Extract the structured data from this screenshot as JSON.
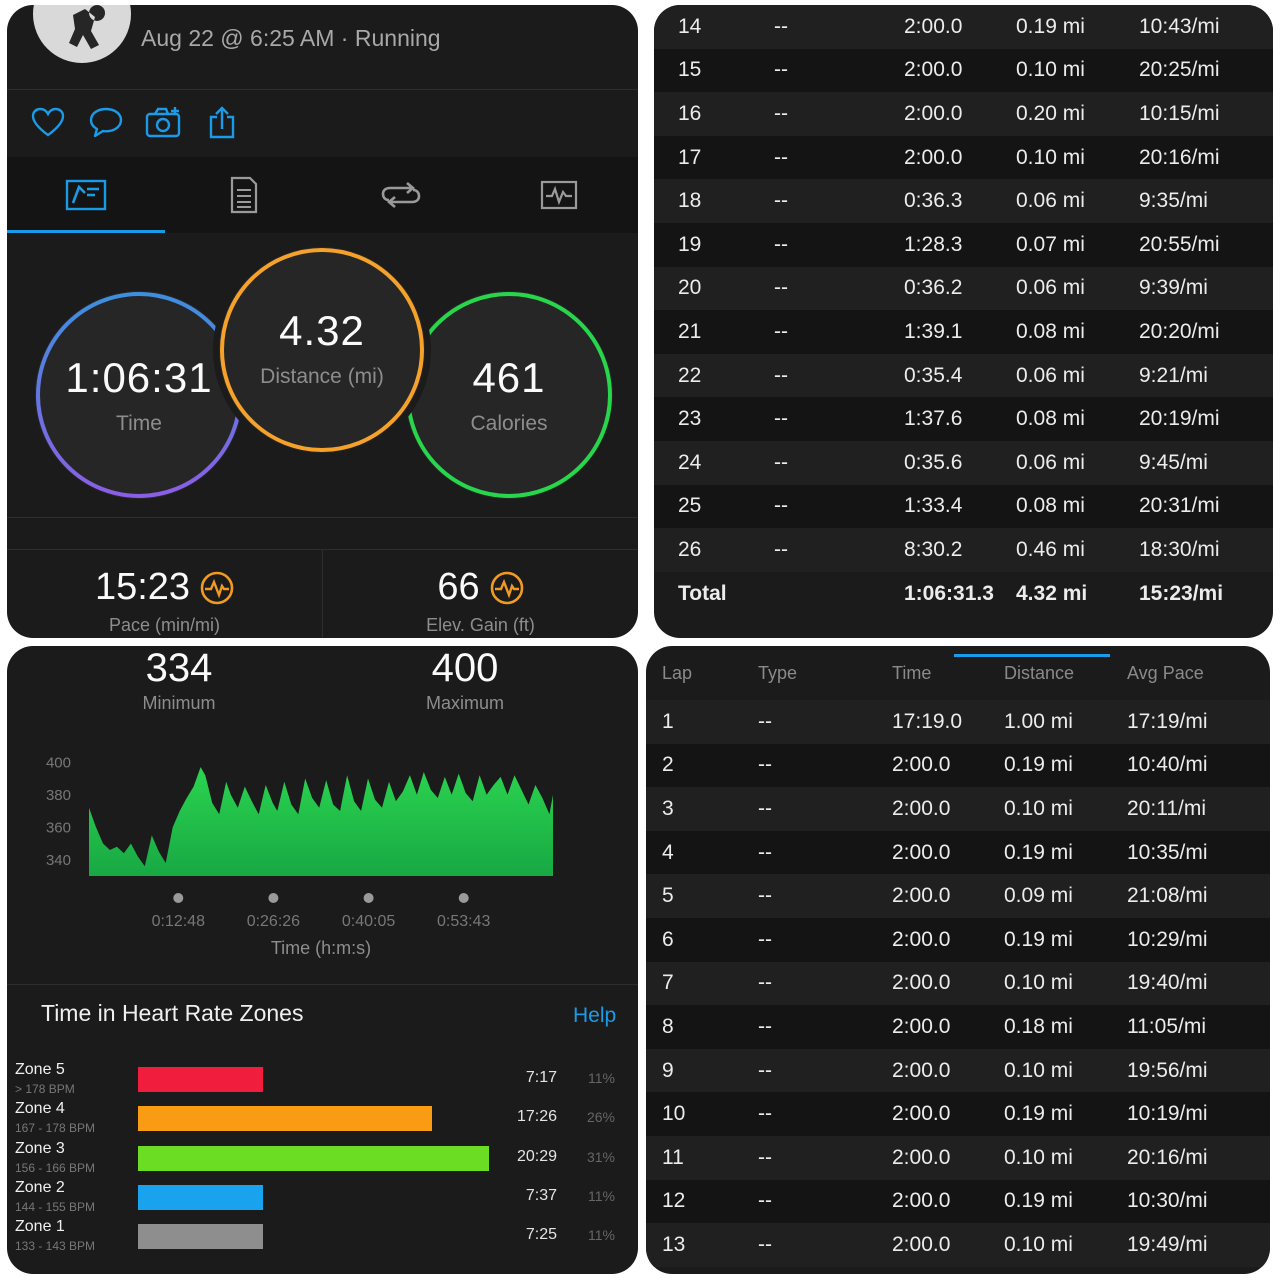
{
  "activity": {
    "date_time": "Aug 22 @ 6:25 AM",
    "separator": " · ",
    "type": "Running"
  },
  "summary": {
    "time": {
      "value": "1:06:31",
      "label": "Time"
    },
    "distance": {
      "value": "4.32",
      "label": "Distance (mi)"
    },
    "calories": {
      "value": "461",
      "label": "Calories"
    },
    "pace": {
      "value": "15:23",
      "label": "Pace (min/mi)"
    },
    "elevation": {
      "value": "66",
      "label": "Elev. Gain (ft)"
    }
  },
  "colors": {
    "accent": "#1a9be8",
    "time_ring": "#3d8fe0",
    "time_ring_end": "#8b5ee6",
    "distance_ring": "#f5a12a",
    "calories_ring": "#27d64b",
    "chart_fill": "#22c94f",
    "badge": "#f09a22"
  },
  "icons": {
    "social": [
      "heart-icon",
      "comment-icon",
      "camera-icon",
      "share-icon"
    ],
    "tabs": [
      "overview-icon",
      "stats-icon",
      "laps-icon",
      "charts-icon"
    ],
    "badge": "performance-badge-icon"
  },
  "cadence": {
    "minimum": {
      "value": "334",
      "label": "Minimum"
    },
    "maximum": {
      "value": "400",
      "label": "Maximum"
    },
    "xlabel": "Time (h:m:s)"
  },
  "chart_data": {
    "type": "area",
    "xlabel": "Time (h:m:s)",
    "ylabel": "",
    "ylim": [
      330,
      410
    ],
    "y_ticks": [
      400,
      380,
      360,
      340
    ],
    "x_ticks": [
      "0:12:48",
      "0:26:26",
      "0:40:05",
      "0:53:43"
    ],
    "x_tick_seconds": [
      768,
      1586,
      2405,
      3223
    ],
    "x_range_seconds": [
      0,
      3991
    ],
    "grid": false,
    "series": [
      {
        "x": [
          0,
          60,
          120,
          180,
          240,
          300,
          360,
          420,
          480,
          540,
          600,
          660,
          720,
          780,
          840,
          900,
          960,
          1000,
          1060,
          1120,
          1180,
          1220,
          1280,
          1340,
          1400,
          1460,
          1520,
          1580,
          1620,
          1680,
          1740,
          1800,
          1860,
          1920,
          1980,
          2040,
          2100,
          2160,
          2220,
          2280,
          2340,
          2400,
          2460,
          2520,
          2580,
          2640,
          2700,
          2760,
          2820,
          2880,
          2940,
          3000,
          3060,
          3120,
          3180,
          3240,
          3300,
          3360,
          3420,
          3480,
          3540,
          3600,
          3660,
          3720,
          3780,
          3840,
          3900,
          3960,
          3991
        ],
        "values": [
          372,
          360,
          350,
          346,
          348,
          344,
          350,
          342,
          336,
          355,
          345,
          338,
          360,
          370,
          378,
          385,
          397,
          392,
          375,
          368,
          388,
          380,
          372,
          385,
          376,
          368,
          386,
          375,
          370,
          388,
          374,
          368,
          390,
          378,
          372,
          389,
          374,
          370,
          392,
          376,
          370,
          390,
          377,
          372,
          388,
          376,
          382,
          392,
          380,
          394,
          383,
          378,
          391,
          380,
          393,
          381,
          376,
          392,
          380,
          386,
          391,
          380,
          392,
          383,
          374,
          386,
          378,
          368,
          380
        ]
      }
    ]
  },
  "hr_zones": {
    "title": "Time in Heart Rate Zones",
    "help": "Help",
    "zones": [
      {
        "name": "Zone 5",
        "range": "> 178 BPM",
        "time": "7:17",
        "percent": "11%",
        "share": 0.11,
        "color": "#f01e3c"
      },
      {
        "name": "Zone 4",
        "range": "167 - 178 BPM",
        "time": "17:26",
        "percent": "26%",
        "share": 0.26,
        "color": "#fa9b14"
      },
      {
        "name": "Zone 3",
        "range": "156 - 166 BPM",
        "time": "20:29",
        "percent": "31%",
        "share": 0.31,
        "color": "#6bdd23"
      },
      {
        "name": "Zone 2",
        "range": "144 - 155 BPM",
        "time": "7:37",
        "percent": "11%",
        "share": 0.11,
        "color": "#19a2ee"
      },
      {
        "name": "Zone 1",
        "range": "133 - 143 BPM",
        "time": "7:25",
        "percent": "11%",
        "share": 0.11,
        "color": "#8e8e8e"
      }
    ]
  },
  "laps_table": {
    "headers": [
      "Lap",
      "Type",
      "Time",
      "Distance",
      "Avg Pace"
    ],
    "rows_start": [
      [
        "1",
        "--",
        "17:19.0",
        "1.00 mi",
        "17:19/mi"
      ],
      [
        "2",
        "--",
        "2:00.0",
        "0.19 mi",
        "10:40/mi"
      ],
      [
        "3",
        "--",
        "2:00.0",
        "0.10 mi",
        "20:11/mi"
      ],
      [
        "4",
        "--",
        "2:00.0",
        "0.19 mi",
        "10:35/mi"
      ],
      [
        "5",
        "--",
        "2:00.0",
        "0.09 mi",
        "21:08/mi"
      ],
      [
        "6",
        "--",
        "2:00.0",
        "0.19 mi",
        "10:29/mi"
      ],
      [
        "7",
        "--",
        "2:00.0",
        "0.10 mi",
        "19:40/mi"
      ],
      [
        "8",
        "--",
        "2:00.0",
        "0.18 mi",
        "11:05/mi"
      ],
      [
        "9",
        "--",
        "2:00.0",
        "0.10 mi",
        "19:56/mi"
      ],
      [
        "10",
        "--",
        "2:00.0",
        "0.19 mi",
        "10:19/mi"
      ],
      [
        "11",
        "--",
        "2:00.0",
        "0.10 mi",
        "20:16/mi"
      ],
      [
        "12",
        "--",
        "2:00.0",
        "0.19 mi",
        "10:30/mi"
      ],
      [
        "13",
        "--",
        "2:00.0",
        "0.10 mi",
        "19:49/mi"
      ]
    ],
    "rows_end": [
      [
        "14",
        "--",
        "2:00.0",
        "0.19 mi",
        "10:43/mi"
      ],
      [
        "15",
        "--",
        "2:00.0",
        "0.10 mi",
        "20:25/mi"
      ],
      [
        "16",
        "--",
        "2:00.0",
        "0.20 mi",
        "10:15/mi"
      ],
      [
        "17",
        "--",
        "2:00.0",
        "0.10 mi",
        "20:16/mi"
      ],
      [
        "18",
        "--",
        "0:36.3",
        "0.06 mi",
        "9:35/mi"
      ],
      [
        "19",
        "--",
        "1:28.3",
        "0.07 mi",
        "20:55/mi"
      ],
      [
        "20",
        "--",
        "0:36.2",
        "0.06 mi",
        "9:39/mi"
      ],
      [
        "21",
        "--",
        "1:39.1",
        "0.08 mi",
        "20:20/mi"
      ],
      [
        "22",
        "--",
        "0:35.4",
        "0.06 mi",
        "9:21/mi"
      ],
      [
        "23",
        "--",
        "1:37.6",
        "0.08 mi",
        "20:19/mi"
      ],
      [
        "24",
        "--",
        "0:35.6",
        "0.06 mi",
        "9:45/mi"
      ],
      [
        "25",
        "--",
        "1:33.4",
        "0.08 mi",
        "20:31/mi"
      ],
      [
        "26",
        "--",
        "8:30.2",
        "0.46 mi",
        "18:30/mi"
      ]
    ],
    "total": [
      "Total",
      "",
      "1:06:31.3",
      "4.32 mi",
      "15:23/mi"
    ]
  }
}
